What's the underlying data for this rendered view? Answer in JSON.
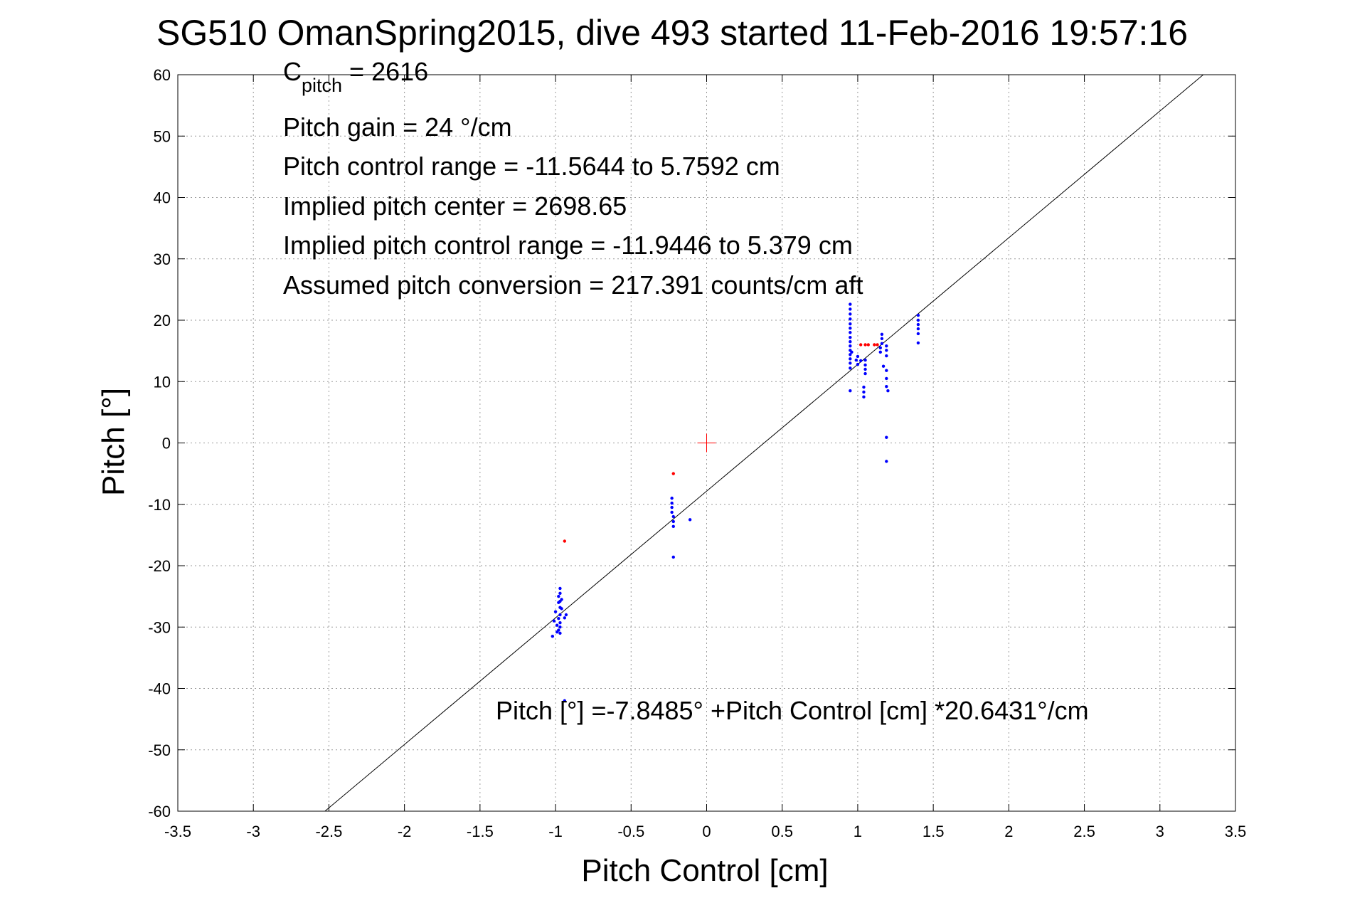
{
  "chart_data": {
    "type": "scatter",
    "title": "SG510 OmanSpring2015, dive 493 started 11-Feb-2016 19:57:16",
    "xlabel": "Pitch Control [cm]",
    "ylabel": "Pitch [°]",
    "xlim": [
      -3.5,
      3.5
    ],
    "ylim": [
      -60,
      60
    ],
    "xticks": [
      -3.5,
      -3,
      -2.5,
      -2,
      -1.5,
      -1,
      -0.5,
      0,
      0.5,
      1,
      1.5,
      2,
      2.5,
      3,
      3.5
    ],
    "xtick_labels": [
      "-3.5",
      "-3",
      "-2.5",
      "-2",
      "-1.5",
      "-1",
      "-0.5",
      "0",
      "0.5",
      "1",
      "1.5",
      "2",
      "2.5",
      "3",
      "3.5"
    ],
    "yticks": [
      60,
      50,
      40,
      30,
      20,
      10,
      0,
      -10,
      -20,
      -30,
      -40,
      -50,
      -60
    ],
    "ytick_labels": [
      "60",
      "50",
      "40",
      "30",
      "20",
      "10",
      "0",
      "-10",
      "-20",
      "-30",
      "-40",
      "-50",
      "-60"
    ],
    "grid": true,
    "annotations": {
      "c_pitch_main": "C",
      "c_pitch_sub": "pitch",
      "c_pitch_value": " = 2616",
      "pitch_gain": "Pitch gain = 24 °/cm",
      "pitch_control_range": "Pitch control range = -11.5644 to 5.7592 cm",
      "implied_pitch_center": "Implied pitch center = 2698.65",
      "implied_pitch_control_range": "Implied pitch control range = -11.9446 to 5.379 cm",
      "assumed_pitch_conversion": "Assumed pitch conversion = 217.391 counts/cm aft",
      "fit_equation": "Pitch [°] =-7.8485° +Pitch Control [cm] *20.6431°/cm"
    },
    "fit_line": {
      "intercept": -7.8485,
      "slope": 20.6431,
      "color": "#000000"
    },
    "center_marker": {
      "x": 0,
      "y": 0,
      "color": "#ff0000"
    },
    "series": [
      {
        "color": "#0000ff",
        "points": [
          [
            -1.02,
            -31.5
          ],
          [
            -1.01,
            -29
          ],
          [
            -1.0,
            -27.5
          ],
          [
            -0.99,
            -30.8
          ],
          [
            -0.99,
            -29.7
          ],
          [
            -0.98,
            -30.5
          ],
          [
            -0.98,
            -28.6
          ],
          [
            -0.98,
            -26
          ],
          [
            -0.98,
            -25
          ],
          [
            -0.97,
            -31
          ],
          [
            -0.97,
            -30
          ],
          [
            -0.97,
            -29.3
          ],
          [
            -0.97,
            -28
          ],
          [
            -0.97,
            -26.8
          ],
          [
            -0.97,
            -25.8
          ],
          [
            -0.97,
            -24.5
          ],
          [
            -0.97,
            -23.7
          ],
          [
            -0.96,
            -27
          ],
          [
            -0.96,
            -25.5
          ],
          [
            -0.94,
            -28.5
          ],
          [
            -0.93,
            -28
          ],
          [
            -0.94,
            -42
          ],
          [
            -0.23,
            -9
          ],
          [
            -0.23,
            -9.8
          ],
          [
            -0.23,
            -10.5
          ],
          [
            -0.23,
            -11.3
          ],
          [
            -0.22,
            -12
          ],
          [
            -0.22,
            -12.8
          ],
          [
            -0.22,
            -13.6
          ],
          [
            -0.22,
            -18.6
          ],
          [
            -0.11,
            -12.5
          ],
          [
            0.95,
            8.5
          ],
          [
            0.95,
            12.2
          ],
          [
            0.95,
            13
          ],
          [
            0.95,
            13.7
          ],
          [
            0.95,
            14.4
          ],
          [
            0.95,
            15.1
          ],
          [
            0.95,
            15.8
          ],
          [
            0.95,
            16.5
          ],
          [
            0.95,
            17.2
          ],
          [
            0.95,
            18
          ],
          [
            0.95,
            18.7
          ],
          [
            0.95,
            19.4
          ],
          [
            0.95,
            20.2
          ],
          [
            0.95,
            21
          ],
          [
            0.95,
            21.8
          ],
          [
            0.95,
            22.6
          ],
          [
            0.96,
            14.8
          ],
          [
            0.99,
            13.5
          ],
          [
            1.0,
            12.8
          ],
          [
            1.0,
            14.1
          ],
          [
            1.02,
            13.4
          ],
          [
            1.04,
            7.5
          ],
          [
            1.04,
            8.3
          ],
          [
            1.04,
            9.1
          ],
          [
            1.05,
            11.3
          ],
          [
            1.05,
            12
          ],
          [
            1.05,
            12.7
          ],
          [
            1.05,
            13.5
          ],
          [
            1.15,
            14.8
          ],
          [
            1.15,
            15.5
          ],
          [
            1.16,
            16.2
          ],
          [
            1.16,
            17
          ],
          [
            1.16,
            17.7
          ],
          [
            1.17,
            12.5
          ],
          [
            1.19,
            15.1
          ],
          [
            1.19,
            15.8
          ],
          [
            1.19,
            14.2
          ],
          [
            1.19,
            11.8
          ],
          [
            1.19,
            10.5
          ],
          [
            1.19,
            9.2
          ],
          [
            1.2,
            8.5
          ],
          [
            1.19,
            0.9
          ],
          [
            1.19,
            -3
          ],
          [
            1.4,
            16.3
          ],
          [
            1.4,
            17.8
          ],
          [
            1.4,
            18.6
          ],
          [
            1.4,
            19.3
          ],
          [
            1.4,
            20
          ],
          [
            1.4,
            20.8
          ]
        ]
      },
      {
        "color": "#ff0000",
        "points": [
          [
            -0.94,
            -16
          ],
          [
            -0.22,
            -5
          ],
          [
            1.02,
            16
          ],
          [
            1.05,
            16
          ],
          [
            1.07,
            16
          ],
          [
            1.11,
            16
          ],
          [
            1.13,
            16
          ]
        ]
      }
    ]
  }
}
